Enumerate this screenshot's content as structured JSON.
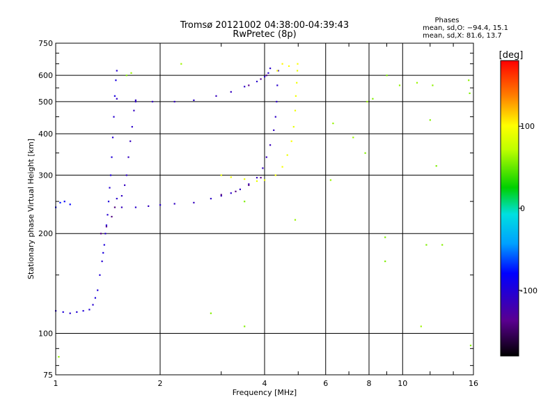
{
  "chart_data": {
    "type": "scatter",
    "title": "Tromsø 20121002 04:38:00-04:39:43",
    "subtitle": "RwPretec (8p)",
    "xlabel": "Frequency [MHz]",
    "ylabel": "Stationary phase Virtual Height [km]",
    "x_scale": "log",
    "y_scale": "log",
    "xlim": [
      1,
      16
    ],
    "ylim": [
      75,
      750
    ],
    "x_ticks": [
      1,
      2,
      4,
      6,
      8,
      10,
      16
    ],
    "x_tick_labels": [
      "1",
      "2",
      "4",
      "6",
      "8",
      "10",
      "16"
    ],
    "y_ticks": [
      75,
      100,
      200,
      300,
      400,
      500,
      600,
      750
    ],
    "y_tick_labels": [
      "75",
      "100",
      "200",
      "300",
      "400",
      "500",
      "600",
      "750"
    ],
    "grid": true,
    "stats": {
      "heading": "Phases",
      "o_line": "mean, sd,O: −94.4, 15.1",
      "x_line": "mean, sd,X:  81.6, 13.7"
    },
    "colorbar": {
      "label": "[deg]",
      "range": [
        -180,
        180
      ],
      "ticks": [
        100,
        0,
        -100
      ],
      "tick_labels": [
        "100",
        "0",
        "-100"
      ],
      "colormap": "rainbow"
    },
    "color_by": "phase",
    "traces": [
      {
        "points": [
          [
            1.0,
            117
          ],
          [
            1.05,
            116
          ],
          [
            1.1,
            115
          ],
          [
            1.15,
            116
          ],
          [
            1.2,
            117
          ],
          [
            1.25,
            118
          ],
          [
            1.28,
            122
          ],
          [
            1.3,
            128
          ],
          [
            1.32,
            135
          ],
          [
            1.34,
            150
          ],
          [
            1.36,
            165
          ],
          [
            1.37,
            175
          ],
          [
            1.38,
            185
          ],
          [
            1.39,
            200
          ],
          [
            1.4,
            212
          ],
          [
            1.41,
            228
          ],
          [
            1.42,
            250
          ],
          [
            1.43,
            275
          ],
          [
            1.44,
            300
          ],
          [
            1.45,
            340
          ],
          [
            1.46,
            390
          ],
          [
            1.47,
            450
          ],
          [
            1.48,
            520
          ],
          [
            1.49,
            580
          ],
          [
            1.5,
            620
          ]
        ],
        "phase": -100
      },
      {
        "points": [
          [
            1.0,
            240
          ],
          [
            1.03,
            248
          ],
          [
            1.06,
            250
          ],
          [
            1.1,
            245
          ]
        ],
        "phase": -80
      },
      {
        "points": [
          [
            1.35,
            200
          ],
          [
            1.4,
            210
          ],
          [
            1.45,
            225
          ],
          [
            1.48,
            240
          ]
        ],
        "phase": -140
      },
      {
        "points": [
          [
            1.5,
            255
          ],
          [
            1.55,
            260
          ],
          [
            1.58,
            280
          ],
          [
            1.6,
            300
          ],
          [
            1.62,
            340
          ],
          [
            1.64,
            380
          ],
          [
            1.66,
            420
          ],
          [
            1.68,
            470
          ],
          [
            1.7,
            500
          ]
        ],
        "phase": -110
      },
      {
        "points": [
          [
            1.55,
            240
          ],
          [
            1.7,
            240
          ],
          [
            1.85,
            242
          ],
          [
            2.0,
            244
          ],
          [
            2.2,
            246
          ],
          [
            2.5,
            248
          ],
          [
            2.8,
            255
          ],
          [
            3.0,
            260
          ],
          [
            3.2,
            265
          ],
          [
            3.4,
            272
          ],
          [
            3.6,
            282
          ],
          [
            3.8,
            295
          ],
          [
            3.95,
            315
          ],
          [
            4.05,
            340
          ],
          [
            4.15,
            370
          ],
          [
            4.25,
            410
          ],
          [
            4.3,
            450
          ],
          [
            4.33,
            500
          ],
          [
            4.35,
            560
          ],
          [
            4.38,
            620
          ]
        ],
        "phase": -110
      },
      {
        "points": [
          [
            3.0,
            262
          ],
          [
            3.3,
            268
          ],
          [
            3.6,
            280
          ],
          [
            3.9,
            295
          ]
        ],
        "phase": -140
      },
      {
        "points": [
          [
            1.5,
            510
          ],
          [
            1.7,
            505
          ],
          [
            1.9,
            500
          ],
          [
            2.2,
            500
          ],
          [
            2.5,
            505
          ],
          [
            2.9,
            520
          ],
          [
            3.2,
            535
          ],
          [
            3.5,
            555
          ],
          [
            3.8,
            575
          ],
          [
            4.0,
            595
          ],
          [
            4.1,
            610
          ],
          [
            4.15,
            630
          ]
        ],
        "phase": -110
      },
      {
        "points": [
          [
            3.6,
            560
          ],
          [
            3.9,
            585
          ],
          [
            4.05,
            600
          ]
        ],
        "phase": -140
      },
      {
        "points": [
          [
            3.0,
            300
          ],
          [
            3.2,
            296
          ],
          [
            3.5,
            292
          ],
          [
            3.8,
            288
          ],
          [
            4.0,
            290
          ],
          [
            4.3,
            300
          ],
          [
            4.5,
            318
          ],
          [
            4.65,
            345
          ],
          [
            4.78,
            380
          ],
          [
            4.85,
            420
          ],
          [
            4.9,
            470
          ],
          [
            4.92,
            520
          ],
          [
            4.95,
            570
          ],
          [
            4.97,
            620
          ],
          [
            4.98,
            650
          ]
        ],
        "phase": 95
      },
      {
        "points": [
          [
            4.35,
            620
          ],
          [
            4.5,
            650
          ],
          [
            4.7,
            640
          ]
        ],
        "phase": 100
      },
      {
        "points": [
          [
            1.02,
            85
          ],
          [
            1.6,
            600
          ],
          [
            1.65,
            610
          ],
          [
            2.3,
            650
          ],
          [
            2.8,
            115
          ],
          [
            3.5,
            250
          ],
          [
            3.5,
            105
          ],
          [
            4.9,
            220
          ],
          [
            6.2,
            290
          ],
          [
            6.3,
            430
          ],
          [
            7.2,
            390
          ],
          [
            7.8,
            350
          ],
          [
            7.9,
            500
          ],
          [
            8.2,
            510
          ],
          [
            8.9,
            195
          ],
          [
            8.9,
            165
          ],
          [
            9.0,
            600
          ],
          [
            9.8,
            560
          ],
          [
            11.0,
            570
          ],
          [
            11.3,
            105
          ],
          [
            11.7,
            185
          ],
          [
            12.2,
            560
          ],
          [
            12.5,
            320
          ],
          [
            13.0,
            185
          ],
          [
            15.5,
            580
          ],
          [
            15.6,
            530
          ],
          [
            15.7,
            92
          ],
          [
            12.0,
            440
          ]
        ],
        "phase": 60
      }
    ]
  }
}
